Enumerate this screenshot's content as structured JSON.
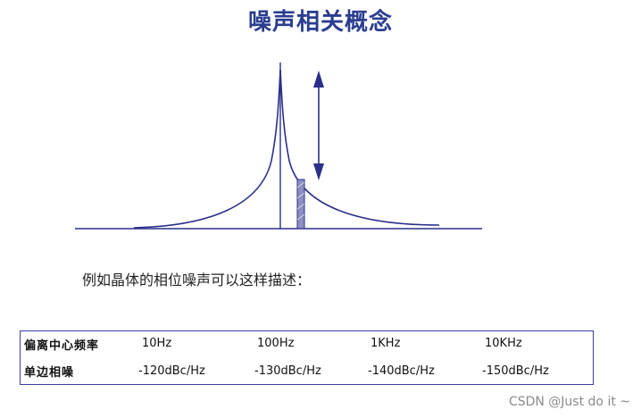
{
  "title": "噪声相关概念",
  "caption": "例如晶体的相位噪声可以这样描述：",
  "table": {
    "rows": [
      {
        "label": "偏离中心频率",
        "values": [
          "10Hz",
          "100Hz",
          "1KHz",
          "10KHz"
        ]
      },
      {
        "label": "单边相噪",
        "values": [
          "-120dBc/Hz",
          "-130dBc/Hz",
          "-140dBc/Hz",
          "-150dBc/Hz"
        ]
      }
    ]
  },
  "colors": {
    "title": "#2a3d8f",
    "curve": "#2b2f8a",
    "bar_fill": "#8c8fbf"
  },
  "watermark": "CSDN @Just do it ~"
}
